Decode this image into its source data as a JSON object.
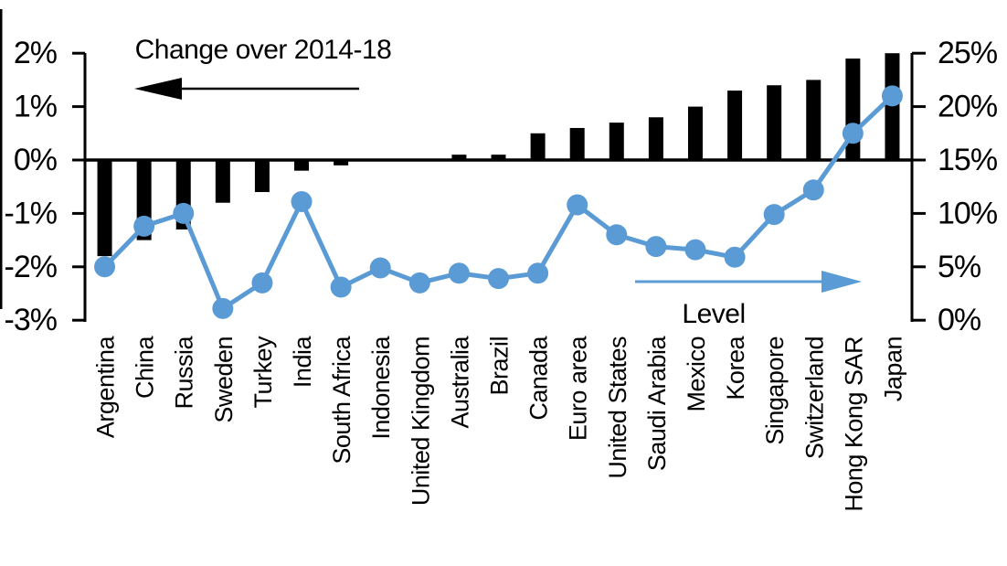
{
  "page": {
    "background": "#ffffff"
  },
  "chart_data": {
    "type": "combo-bar-line",
    "title": "Change over 2014-18",
    "categories": [
      "Argentina",
      "China",
      "Russia",
      "Sweden",
      "Turkey",
      "India",
      "South Africa",
      "Indonesia",
      "United Kingdom",
      "Australia",
      "Brazil",
      "Canada",
      "Euro area",
      "United States",
      "Saudi Arabia",
      "Mexico",
      "Korea",
      "Singapore",
      "Switzerland",
      "Hong Kong SAR",
      "Japan"
    ],
    "series": [
      {
        "name": "Change over 2014-18",
        "type": "bar",
        "axis": "left",
        "color": "#000000",
        "unit": "%",
        "values": [
          -1.8,
          -1.5,
          -1.3,
          -0.8,
          -0.6,
          -0.2,
          -0.1,
          0,
          0,
          0.1,
          0.1,
          0.5,
          0.6,
          0.7,
          0.8,
          1.0,
          1.3,
          1.4,
          1.5,
          1.9,
          2.0
        ]
      },
      {
        "name": "Level",
        "type": "line",
        "axis": "right",
        "color": "#5B9BD5",
        "unit": "%",
        "values": [
          5.0,
          8.8,
          10.0,
          1.1,
          3.5,
          11.1,
          3.1,
          4.9,
          3.5,
          4.4,
          3.9,
          4.4,
          10.8,
          8.0,
          6.9,
          6.6,
          5.9,
          9.9,
          12.2,
          17.5,
          21.0
        ]
      }
    ],
    "left_axis": {
      "tick_labels": [
        "2%",
        "1%",
        "0%",
        "-1%",
        "-2%",
        "-3%"
      ],
      "tick_values": [
        2,
        1,
        0,
        -1,
        -2,
        -3
      ],
      "range": [
        -3,
        2
      ]
    },
    "right_axis": {
      "tick_labels": [
        "25%",
        "20%",
        "15%",
        "10%",
        "5%",
        "0%"
      ],
      "tick_values": [
        25,
        20,
        15,
        10,
        5,
        0
      ],
      "range": [
        0,
        25
      ]
    },
    "annotations": {
      "bar_label": "Change over 2014-18",
      "bar_arrow_direction": "left",
      "line_label": "Level",
      "line_arrow_direction": "right"
    },
    "grid": false,
    "legend": "none",
    "accent_color": "#5B9BD5",
    "bar_color": "#000000"
  }
}
